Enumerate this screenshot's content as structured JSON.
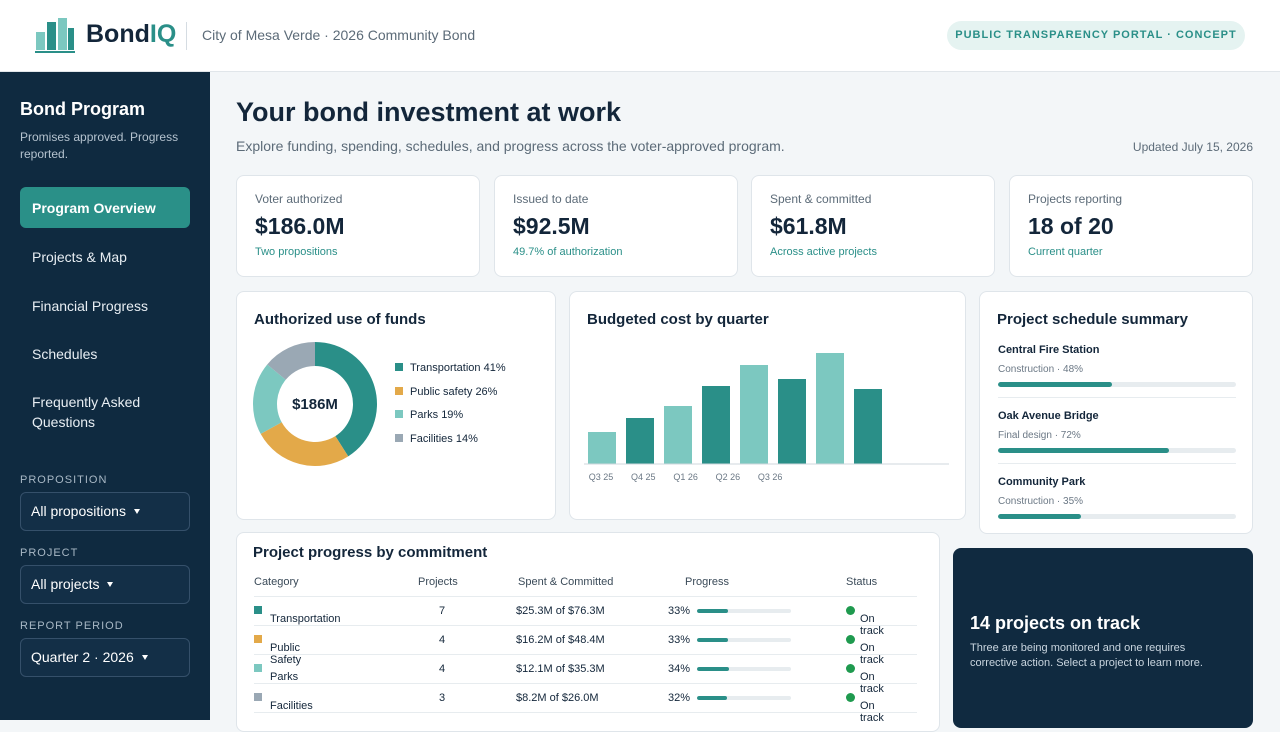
{
  "header": {
    "brand_main": "Bond",
    "brand_accent": "IQ",
    "context": "City of Mesa Verde · 2026 Community Bond",
    "badge": "PUBLIC TRANSPARENCY PORTAL · CONCEPT"
  },
  "sidebar": {
    "title": "Bond Program",
    "subtitle": "Promises approved. Progress reported.",
    "nav": [
      {
        "label": "Program Overview",
        "active": true
      },
      {
        "label": "Projects & Map",
        "active": false
      },
      {
        "label": "Financial Progress",
        "active": false
      },
      {
        "label": "Schedules",
        "active": false
      },
      {
        "label": "Frequently Asked Questions",
        "active": false
      }
    ],
    "filters": [
      {
        "label": "PROPOSITION",
        "value": "All propositions"
      },
      {
        "label": "PROJECT",
        "value": "All projects"
      },
      {
        "label": "REPORT PERIOD",
        "value": "Quarter 2 · 2026"
      }
    ]
  },
  "page": {
    "title": "Your bond investment at work",
    "subtitle": "Explore funding, spending, schedules, and progress across the voter-approved program.",
    "updated": "Updated July 15, 2026"
  },
  "kpis": [
    {
      "label": "Voter authorized",
      "value": "$186.0M",
      "note": "Two propositions"
    },
    {
      "label": "Issued to date",
      "value": "$92.5M",
      "note": "49.7% of authorization"
    },
    {
      "label": "Spent & committed",
      "value": "$61.8M",
      "note": "Across active projects"
    },
    {
      "label": "Projects reporting",
      "value": "18 of 20",
      "note": "Current quarter"
    }
  ],
  "charts": [
    {
      "type": "donut",
      "title": "Authorized use of funds",
      "center_label": "$186M",
      "categories": [
        "Transportation",
        "Public safety",
        "Parks",
        "Facilities"
      ],
      "values": [
        41,
        26,
        19,
        14
      ],
      "value_labels": [
        "41%",
        "26%",
        "19%",
        "14%"
      ],
      "colors": [
        "#2a8f88",
        "#e3a949",
        "#7cc8c0",
        "#9aa8b4"
      ]
    },
    {
      "type": "bar",
      "title": "Budgeted cost by quarter",
      "categories": [
        "Q3 25",
        "Q4 25",
        "Q1 26",
        "Q2 26",
        "Q3 26",
        null,
        null,
        null
      ],
      "values": [
        32,
        46,
        58,
        78,
        99,
        85,
        111,
        75
      ],
      "colors": [
        "#7cc8c0",
        "#2a8f88",
        "#7cc8c0",
        "#2a8f88",
        "#7cc8c0",
        "#2a8f88",
        "#7cc8c0",
        "#2a8f88"
      ],
      "ylim": [
        0,
        120
      ]
    }
  ],
  "schedule": {
    "title": "Project schedule summary",
    "items": [
      {
        "name": "Central Fire Station",
        "status": "Construction · 48%",
        "progress": 48
      },
      {
        "name": "Oak Avenue Bridge",
        "status": "Final design · 72%",
        "progress": 72
      },
      {
        "name": "Community Park",
        "status": "Construction · 35%",
        "progress": 35
      }
    ]
  },
  "table": {
    "title": "Project progress by commitment",
    "columns": [
      "Category",
      "Projects",
      "Spent & Committed",
      "Progress",
      "Status"
    ],
    "rows": [
      {
        "category": "Transportation",
        "color": "#2a8f88",
        "projects": 7,
        "spent": "$25.3M of $76.3M",
        "progress": 33,
        "progress_label": "33%",
        "status": "On track"
      },
      {
        "category": "Public Safety",
        "color": "#e3a949",
        "projects": 4,
        "spent": "$16.2M of $48.4M",
        "progress": 33,
        "progress_label": "33%",
        "status": "On track"
      },
      {
        "category": "Parks",
        "color": "#7cc8c0",
        "projects": 4,
        "spent": "$12.1M of $35.3M",
        "progress": 34,
        "progress_label": "34%",
        "status": "On track"
      },
      {
        "category": "Facilities",
        "color": "#9aa8b4",
        "projects": 3,
        "spent": "$8.2M of $26.0M",
        "progress": 32,
        "progress_label": "32%",
        "status": "On track"
      }
    ]
  },
  "callout": {
    "title": "14 projects on track",
    "text": "Three are being monitored and one requires corrective action. Select a project to learn more."
  }
}
